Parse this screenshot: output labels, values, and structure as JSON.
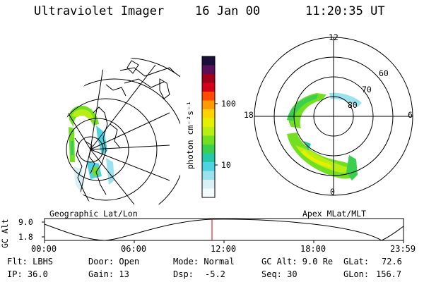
{
  "header": {
    "instrument": "Ultraviolet Imager",
    "date": "16 Jan 00",
    "time": "11:20:35 UT"
  },
  "colorbar": {
    "label": "photon cm⁻²s⁻¹",
    "ticks": [
      "100",
      "10"
    ],
    "colors": [
      "#1a0f3a",
      "#5a0f5a",
      "#a0001a",
      "#d4001a",
      "#ff4a00",
      "#ff9a00",
      "#ffd200",
      "#e4f000",
      "#b8ee14",
      "#72df20",
      "#3bcf4f",
      "#27c8a8",
      "#4fd3e2",
      "#9ae2ee",
      "#d8f1f6",
      "#f4fbfc"
    ]
  },
  "geo_panel": {
    "label": "Geographic Lat/Lon"
  },
  "polar_panel": {
    "label": "Apex MLat/MLT",
    "mlt_labels": {
      "top": "12",
      "left": "18",
      "right": "6",
      "bottom": "0"
    },
    "lat_labels": [
      "60",
      "70",
      "80"
    ]
  },
  "timeline": {
    "ylabel": "GC Alt",
    "yticks": [
      "9.0",
      "1.8"
    ],
    "xticks": [
      "00:00",
      "06:00",
      "12:00",
      "18:00",
      "23:59"
    ],
    "current_marker_color": "#cc0000"
  },
  "footer": {
    "filter": "Flt: LBHS",
    "door": "Door: Open",
    "mode": "Mode: Normal",
    "gc_alt": "GC Alt: 9.0 Re",
    "glat_label": "GLat:",
    "glat_value": "72.6",
    "ip": "IP: 36.0",
    "gain": "Gain: 13",
    "dsp_label": "Dsp:",
    "dsp_value": "-5.2",
    "seq": "Seq: 30",
    "glon_label": "GLon:",
    "glon_value": "156.7"
  }
}
